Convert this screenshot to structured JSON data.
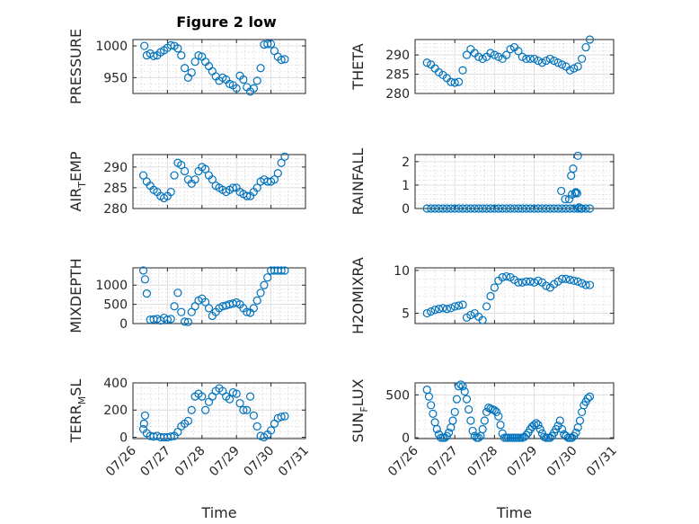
{
  "figure": {
    "title": "Figure 2 low"
  },
  "chart_data": [
    {
      "type": "scatter",
      "title": "Figure 2 low",
      "xlabel": "",
      "ylabel": "PRESSURE",
      "ylim": [
        925,
        1010
      ],
      "yticks": [
        950,
        1000
      ],
      "xlim": [
        "07/26",
        "07/31"
      ],
      "xticks": [
        "07/26",
        "07/27",
        "07/28",
        "07/29",
        "07/30",
        "07/31"
      ],
      "show_xticklabels": false,
      "color": "#0072BD",
      "series": [
        {
          "x": [
            0.33,
            0.4,
            0.5,
            0.6,
            0.7,
            0.8,
            0.9,
            1.0,
            1.1,
            1.2,
            1.3,
            1.4,
            1.5,
            1.6,
            1.7,
            1.8,
            1.9,
            2.0,
            2.1,
            2.2,
            2.3,
            2.4,
            2.5,
            2.6,
            2.7,
            2.8,
            2.9,
            3.0,
            3.1,
            3.2,
            3.3,
            3.4,
            3.5,
            3.6,
            3.7,
            3.8,
            3.9,
            4.0,
            4.1,
            4.2,
            4.3,
            4.4
          ],
          "y": [
            1000,
            985,
            988,
            984,
            985,
            990,
            993,
            997,
            1001,
            1000,
            996,
            985,
            965,
            950,
            958,
            975,
            985,
            983,
            975,
            968,
            960,
            952,
            945,
            950,
            947,
            940,
            938,
            933,
            953,
            947,
            935,
            928,
            933,
            945,
            965,
            1002,
            1003,
            1003,
            992,
            983,
            978,
            979
          ]
        }
      ]
    },
    {
      "type": "scatter",
      "title": "",
      "xlabel": "",
      "ylabel": "THETA",
      "ylim": [
        280,
        294
      ],
      "yticks": [
        280,
        285,
        290
      ],
      "xlim": [
        "07/26",
        "07/31"
      ],
      "xticks": [
        "07/26",
        "07/27",
        "07/28",
        "07/29",
        "07/30",
        "07/31"
      ],
      "show_xticklabels": false,
      "color": "#0072BD",
      "series": [
        {
          "x": [
            0.3,
            0.4,
            0.5,
            0.6,
            0.7,
            0.8,
            0.9,
            1.0,
            1.1,
            1.2,
            1.3,
            1.4,
            1.5,
            1.6,
            1.7,
            1.8,
            1.9,
            2.0,
            2.1,
            2.2,
            2.3,
            2.4,
            2.5,
            2.6,
            2.7,
            2.8,
            2.9,
            3.0,
            3.1,
            3.2,
            3.3,
            3.4,
            3.5,
            3.6,
            3.7,
            3.8,
            3.9,
            4.0,
            4.1,
            4.2,
            4.3,
            4.4
          ],
          "y": [
            288,
            287.5,
            286.5,
            285.5,
            284.8,
            284,
            283,
            282.8,
            283,
            286,
            290,
            291.5,
            290.5,
            289.5,
            289,
            289.5,
            290.5,
            290,
            289.5,
            289,
            290,
            291.5,
            292,
            291,
            289.5,
            289,
            289,
            289,
            288.5,
            288,
            288.5,
            289,
            288.5,
            288,
            287.5,
            287,
            286,
            286.5,
            287,
            289,
            292,
            294
          ]
        }
      ]
    },
    {
      "type": "scatter",
      "title": "",
      "xlabel": "",
      "ylabel": "AIR_TEMP",
      "ylim": [
        280,
        293
      ],
      "yticks": [
        280,
        285,
        290
      ],
      "xlim": [
        "07/26",
        "07/31"
      ],
      "xticks": [
        "07/26",
        "07/27",
        "07/28",
        "07/29",
        "07/30",
        "07/31"
      ],
      "show_xticklabels": false,
      "color": "#0072BD",
      "series": [
        {
          "x": [
            0.3,
            0.4,
            0.5,
            0.6,
            0.7,
            0.8,
            0.9,
            1.0,
            1.1,
            1.2,
            1.3,
            1.4,
            1.5,
            1.6,
            1.7,
            1.8,
            1.9,
            2.0,
            2.1,
            2.2,
            2.3,
            2.4,
            2.5,
            2.6,
            2.7,
            2.8,
            2.9,
            3.0,
            3.1,
            3.2,
            3.3,
            3.4,
            3.5,
            3.6,
            3.7,
            3.8,
            3.9,
            4.0,
            4.1,
            4.2,
            4.3,
            4.4
          ],
          "y": [
            288,
            286.5,
            285.5,
            284.5,
            284,
            283,
            282.5,
            283,
            284,
            288,
            291,
            290.5,
            289,
            287,
            286,
            287,
            289,
            290,
            289.5,
            288,
            287,
            285.5,
            285,
            284.5,
            284,
            284.5,
            285,
            285,
            284,
            283.5,
            283,
            283,
            284,
            285,
            286.5,
            287,
            286.5,
            286.5,
            287,
            288.5,
            291,
            292.5
          ]
        }
      ]
    },
    {
      "type": "scatter",
      "title": "",
      "xlabel": "",
      "ylabel": "RAINFALL",
      "ylim": [
        0,
        2.3
      ],
      "yticks": [
        0,
        1,
        2
      ],
      "xlim": [
        "07/26",
        "07/31"
      ],
      "xticks": [
        "07/26",
        "07/27",
        "07/28",
        "07/29",
        "07/30",
        "07/31"
      ],
      "show_xticklabels": false,
      "color": "#0072BD",
      "series": [
        {
          "x": [
            0.3,
            0.4,
            0.5,
            0.6,
            0.7,
            0.8,
            0.9,
            1.0,
            1.1,
            1.2,
            1.3,
            1.4,
            1.5,
            1.6,
            1.7,
            1.8,
            1.9,
            2.0,
            2.1,
            2.2,
            2.3,
            2.4,
            2.5,
            2.6,
            2.7,
            2.8,
            2.9,
            3.0,
            3.1,
            3.2,
            3.3,
            3.4,
            3.5,
            3.6,
            3.7,
            3.8,
            3.9,
            4.0,
            4.1,
            4.2,
            4.3,
            4.4,
            3.68,
            3.78,
            3.88,
            3.93,
            3.95,
            3.98,
            4.03,
            4.05,
            4.08,
            4.1,
            4.13,
            4.18
          ],
          "y": [
            0,
            0,
            0,
            0,
            0,
            0,
            0,
            0,
            0,
            0,
            0,
            0,
            0,
            0,
            0,
            0,
            0,
            0,
            0,
            0,
            0,
            0,
            0,
            0,
            0,
            0,
            0,
            0,
            0,
            0,
            0,
            0,
            0,
            0,
            0,
            0,
            0,
            0,
            0,
            0,
            0,
            0,
            0.75,
            0.4,
            0.4,
            1.4,
            0.6,
            1.7,
            0.65,
            0.7,
            0.65,
            2.25,
            0.05,
            0
          ]
        }
      ]
    },
    {
      "type": "scatter",
      "title": "",
      "xlabel": "",
      "ylabel": "MIXDEPTH",
      "ylim": [
        0,
        1450
      ],
      "yticks": [
        0,
        500,
        1000
      ],
      "xlim": [
        "07/26",
        "07/31"
      ],
      "xticks": [
        "07/26",
        "07/27",
        "07/28",
        "07/29",
        "07/30",
        "07/31"
      ],
      "show_xticklabels": false,
      "color": "#0072BD",
      "series": [
        {
          "x": [
            0.3,
            0.35,
            0.4,
            0.5,
            0.6,
            0.7,
            0.8,
            0.9,
            1.0,
            1.1,
            1.2,
            1.3,
            1.4,
            1.5,
            1.6,
            1.7,
            1.8,
            1.9,
            2.0,
            2.1,
            2.2,
            2.3,
            2.4,
            2.5,
            2.6,
            2.7,
            2.8,
            2.9,
            3.0,
            3.1,
            3.2,
            3.3,
            3.4,
            3.5,
            3.6,
            3.7,
            3.8,
            3.9,
            4.0,
            4.1,
            4.2,
            4.3,
            4.4
          ],
          "y": [
            1380,
            1150,
            780,
            100,
            110,
            120,
            80,
            150,
            100,
            120,
            450,
            800,
            300,
            50,
            40,
            300,
            450,
            600,
            650,
            560,
            400,
            200,
            300,
            400,
            450,
            470,
            500,
            520,
            550,
            500,
            400,
            300,
            280,
            400,
            600,
            800,
            1000,
            1200,
            1380,
            1380,
            1380,
            1380,
            1380
          ]
        }
      ]
    },
    {
      "type": "scatter",
      "title": "",
      "xlabel": "",
      "ylabel": "H2OMIXRA",
      "ylim": [
        3.8,
        10.3
      ],
      "yticks": [
        5,
        10
      ],
      "xlim": [
        "07/26",
        "07/31"
      ],
      "xticks": [
        "07/26",
        "07/27",
        "07/28",
        "07/29",
        "07/30",
        "07/31"
      ],
      "show_xticklabels": false,
      "color": "#0072BD",
      "series": [
        {
          "x": [
            0.3,
            0.4,
            0.5,
            0.6,
            0.7,
            0.8,
            0.9,
            1.0,
            1.1,
            1.2,
            1.3,
            1.4,
            1.5,
            1.6,
            1.7,
            1.8,
            1.9,
            2.0,
            2.1,
            2.2,
            2.3,
            2.4,
            2.5,
            2.6,
            2.7,
            2.8,
            2.9,
            3.0,
            3.1,
            3.2,
            3.3,
            3.4,
            3.5,
            3.6,
            3.7,
            3.8,
            3.9,
            4.0,
            4.1,
            4.2,
            4.3,
            4.4
          ],
          "y": [
            5.0,
            5.2,
            5.4,
            5.5,
            5.6,
            5.5,
            5.6,
            5.8,
            5.9,
            6.0,
            4.5,
            4.8,
            5.0,
            4.6,
            4.2,
            5.8,
            7.0,
            8.0,
            8.8,
            9.2,
            9.3,
            9.2,
            8.9,
            8.6,
            8.6,
            8.7,
            8.7,
            8.6,
            8.8,
            8.6,
            8.2,
            8.0,
            8.4,
            8.7,
            9.0,
            9.0,
            8.9,
            8.8,
            8.7,
            8.5,
            8.3,
            8.3
          ]
        }
      ]
    },
    {
      "type": "scatter",
      "title": "",
      "xlabel": "Time",
      "ylabel": "TERR_MSL",
      "ylim": [
        -10,
        400
      ],
      "yticks": [
        0,
        200,
        400
      ],
      "xlim": [
        "07/26",
        "07/31"
      ],
      "xticks": [
        "07/26",
        "07/27",
        "07/28",
        "07/29",
        "07/30",
        "07/31"
      ],
      "show_xticklabels": true,
      "color": "#0072BD",
      "series": [
        {
          "x": [
            0.3,
            0.32,
            0.35,
            0.4,
            0.5,
            0.6,
            0.7,
            0.8,
            0.9,
            1.0,
            1.1,
            1.2,
            1.3,
            1.4,
            1.5,
            1.6,
            1.7,
            1.8,
            1.9,
            2.0,
            2.1,
            2.2,
            2.3,
            2.4,
            2.5,
            2.6,
            2.7,
            2.8,
            2.9,
            3.0,
            3.1,
            3.2,
            3.3,
            3.4,
            3.5,
            3.6,
            3.7,
            3.8,
            3.9,
            4.0,
            4.1,
            4.2,
            4.3,
            4.4
          ],
          "y": [
            60,
            100,
            160,
            30,
            10,
            5,
            10,
            0,
            0,
            0,
            5,
            10,
            40,
            80,
            100,
            120,
            200,
            300,
            320,
            300,
            200,
            260,
            300,
            340,
            360,
            340,
            300,
            280,
            330,
            320,
            250,
            200,
            200,
            300,
            160,
            80,
            10,
            0,
            20,
            50,
            100,
            140,
            150,
            155
          ]
        }
      ]
    },
    {
      "type": "scatter",
      "title": "",
      "xlabel": "Time",
      "ylabel": "SUN_FLUX",
      "ylim": [
        -10,
        640
      ],
      "yticks": [
        0,
        500
      ],
      "xlim": [
        "07/26",
        "07/31"
      ],
      "xticks": [
        "07/26",
        "07/27",
        "07/28",
        "07/29",
        "07/30",
        "07/31"
      ],
      "show_xticklabels": true,
      "color": "#0072BD",
      "series": [
        {
          "x": [
            0.3,
            0.35,
            0.4,
            0.45,
            0.5,
            0.55,
            0.6,
            0.65,
            0.7,
            0.75,
            0.8,
            0.85,
            0.9,
            0.95,
            1.0,
            1.05,
            1.1,
            1.15,
            1.2,
            1.25,
            1.3,
            1.35,
            1.4,
            1.45,
            1.5,
            1.55,
            1.6,
            1.65,
            1.7,
            1.75,
            1.8,
            1.85,
            1.9,
            1.95,
            2.0,
            2.05,
            2.1,
            2.15,
            2.2,
            2.25,
            2.3,
            2.35,
            2.4,
            2.45,
            2.5,
            2.55,
            2.6,
            2.65,
            2.7,
            2.75,
            2.8,
            2.85,
            2.9,
            2.95,
            3.0,
            3.05,
            3.1,
            3.15,
            3.2,
            3.25,
            3.3,
            3.35,
            3.4,
            3.45,
            3.5,
            3.55,
            3.6,
            3.65,
            3.7,
            3.75,
            3.8,
            3.85,
            3.9,
            3.95,
            4.0,
            4.05,
            4.1,
            4.15,
            4.2,
            4.25,
            4.3,
            4.35,
            4.4
          ],
          "y": [
            560,
            480,
            380,
            280,
            180,
            100,
            40,
            0,
            0,
            0,
            20,
            60,
            120,
            200,
            300,
            450,
            600,
            620,
            600,
            540,
            450,
            330,
            200,
            80,
            20,
            0,
            0,
            20,
            100,
            200,
            300,
            350,
            340,
            330,
            320,
            300,
            250,
            150,
            50,
            0,
            0,
            0,
            0,
            0,
            0,
            0,
            0,
            0,
            0,
            10,
            30,
            60,
            100,
            130,
            150,
            170,
            150,
            100,
            50,
            10,
            0,
            0,
            0,
            20,
            60,
            100,
            140,
            200,
            100,
            40,
            20,
            0,
            0,
            0,
            20,
            60,
            120,
            200,
            300,
            380,
            420,
            460,
            480
          ]
        }
      ]
    }
  ]
}
